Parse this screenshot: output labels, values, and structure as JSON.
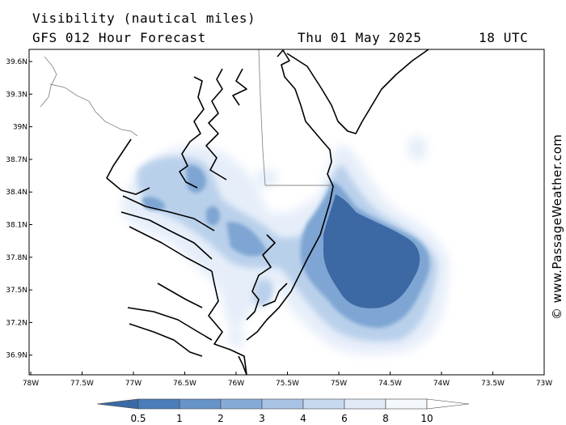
{
  "header": {
    "title": "Visibility (nautical miles)",
    "subtitle": "GFS 012 Hour Forecast",
    "date": "Thu 01 May 2025",
    "time": "18 UTC"
  },
  "credit": "© www.PassageWeather.com",
  "map": {
    "lat_labels": [
      "39.6N",
      "39.3N",
      "39N",
      "38.7N",
      "38.4N",
      "38.1N",
      "37.8N",
      "37.5N",
      "37.2N",
      "36.9N"
    ],
    "lon_labels": [
      "78W",
      "77.5W",
      "77W",
      "76.5W",
      "76W",
      "75.5W",
      "75W",
      "74.5W",
      "74W",
      "73.5W",
      "73W"
    ]
  },
  "legend": {
    "labels": [
      "0.5",
      "1",
      "2",
      "3",
      "4",
      "6",
      "8",
      "10"
    ],
    "colors": [
      "#3a6aa6",
      "#4a7db9",
      "#6693c8",
      "#86abd7",
      "#a8c3e4",
      "#c7d9ef",
      "#e1ebf7",
      "#f4f8fd"
    ]
  },
  "colors": {
    "land_border": "#000000",
    "state_border": "#888888",
    "background": "#ffffff"
  }
}
